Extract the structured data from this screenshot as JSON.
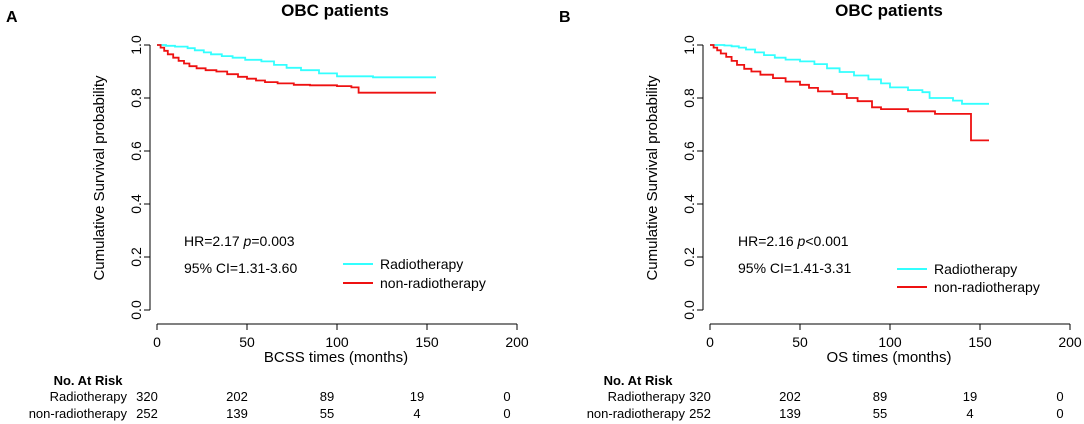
{
  "colors": {
    "radiotherapy": "#33FFFF",
    "non_radiotherapy": "#EE1111",
    "axis": "#000000"
  },
  "risk_header": "No. At Risk",
  "chart_data": [
    {
      "type": "line",
      "panel_label": "A",
      "title": "OBC patients",
      "xlabel": "BCSS times (months)",
      "ylabel": "Cumulative Survival probability",
      "xlim": [
        0,
        200
      ],
      "ylim": [
        0,
        1
      ],
      "xticks": [
        0,
        50,
        100,
        150,
        200
      ],
      "yticks": [
        0.0,
        0.2,
        0.4,
        0.6,
        0.8,
        1.0
      ],
      "grid": false,
      "stat_hr_prefix": "HR=2.17 ",
      "stat_p_symbol": "p",
      "stat_p_value": "=0.003",
      "stat_ci": "95% CI=1.31-3.60",
      "legend_position": "bottom-right",
      "series": [
        {
          "name": "Radiotherapy",
          "color_key": "radiotherapy",
          "points": [
            [
              0,
              1.0
            ],
            [
              3,
              1.0
            ],
            [
              5,
              0.997
            ],
            [
              10,
              0.994
            ],
            [
              17,
              0.988
            ],
            [
              21,
              0.98
            ],
            [
              26,
              0.972
            ],
            [
              30,
              0.965
            ],
            [
              36,
              0.958
            ],
            [
              42,
              0.952
            ],
            [
              49,
              0.944
            ],
            [
              58,
              0.938
            ],
            [
              65,
              0.925
            ],
            [
              72,
              0.914
            ],
            [
              80,
              0.905
            ],
            [
              90,
              0.893
            ],
            [
              100,
              0.882
            ],
            [
              120,
              0.878
            ],
            [
              130,
              0.878
            ],
            [
              155,
              0.878
            ]
          ]
        },
        {
          "name": "non-radiotherapy",
          "color_key": "non_radiotherapy",
          "points": [
            [
              0,
              1.0
            ],
            [
              2,
              0.99
            ],
            [
              4,
              0.978
            ],
            [
              6,
              0.965
            ],
            [
              9,
              0.952
            ],
            [
              12,
              0.94
            ],
            [
              15,
              0.93
            ],
            [
              18,
              0.92
            ],
            [
              22,
              0.912
            ],
            [
              27,
              0.905
            ],
            [
              33,
              0.9
            ],
            [
              39,
              0.89
            ],
            [
              45,
              0.88
            ],
            [
              50,
              0.873
            ],
            [
              55,
              0.866
            ],
            [
              60,
              0.86
            ],
            [
              67,
              0.855
            ],
            [
              76,
              0.85
            ],
            [
              85,
              0.848
            ],
            [
              100,
              0.845
            ],
            [
              104,
              0.845
            ],
            [
              108,
              0.84
            ],
            [
              112,
              0.82
            ],
            [
              125,
              0.82
            ],
            [
              155,
              0.82
            ]
          ]
        }
      ],
      "risk_rows": [
        {
          "label": "Radiotherapy",
          "values": [
            "320",
            "202",
            "89",
            "19",
            "0"
          ]
        },
        {
          "label": "non-radiotherapy",
          "values": [
            "252",
            "139",
            "55",
            "4",
            "0"
          ]
        }
      ]
    },
    {
      "type": "line",
      "panel_label": "B",
      "title": "OBC patients",
      "xlabel": "OS times (months)",
      "ylabel": "Cumulative Survival probability",
      "xlim": [
        0,
        200
      ],
      "ylim": [
        0,
        1
      ],
      "xticks": [
        0,
        50,
        100,
        150,
        200
      ],
      "yticks": [
        0.0,
        0.2,
        0.4,
        0.6,
        0.8,
        1.0
      ],
      "grid": false,
      "stat_hr_prefix": "HR=2.16 ",
      "stat_p_symbol": "p",
      "stat_p_value": "<0.001",
      "stat_ci": "95% CI=1.41-3.31",
      "legend_position": "bottom-right",
      "series": [
        {
          "name": "Radiotherapy",
          "color_key": "radiotherapy",
          "points": [
            [
              0,
              1.0
            ],
            [
              4,
              1.0
            ],
            [
              8,
              0.998
            ],
            [
              12,
              0.995
            ],
            [
              16,
              0.99
            ],
            [
              20,
              0.983
            ],
            [
              25,
              0.972
            ],
            [
              30,
              0.962
            ],
            [
              36,
              0.952
            ],
            [
              42,
              0.945
            ],
            [
              50,
              0.938
            ],
            [
              58,
              0.928
            ],
            [
              65,
              0.912
            ],
            [
              72,
              0.898
            ],
            [
              80,
              0.885
            ],
            [
              88,
              0.87
            ],
            [
              95,
              0.855
            ],
            [
              100,
              0.84
            ],
            [
              110,
              0.83
            ],
            [
              118,
              0.822
            ],
            [
              122,
              0.8
            ],
            [
              135,
              0.79
            ],
            [
              140,
              0.778
            ],
            [
              155,
              0.778
            ]
          ]
        },
        {
          "name": "non-radiotherapy",
          "color_key": "non_radiotherapy",
          "points": [
            [
              0,
              1.0
            ],
            [
              2,
              0.99
            ],
            [
              4,
              0.98
            ],
            [
              6,
              0.968
            ],
            [
              9,
              0.955
            ],
            [
              12,
              0.94
            ],
            [
              15,
              0.925
            ],
            [
              19,
              0.91
            ],
            [
              23,
              0.9
            ],
            [
              28,
              0.888
            ],
            [
              35,
              0.875
            ],
            [
              42,
              0.862
            ],
            [
              50,
              0.85
            ],
            [
              55,
              0.838
            ],
            [
              60,
              0.825
            ],
            [
              68,
              0.815
            ],
            [
              76,
              0.8
            ],
            [
              82,
              0.788
            ],
            [
              90,
              0.765
            ],
            [
              95,
              0.758
            ],
            [
              110,
              0.75
            ],
            [
              125,
              0.74
            ],
            [
              144,
              0.74
            ],
            [
              145,
              0.64
            ],
            [
              155,
              0.64
            ]
          ]
        }
      ],
      "risk_rows": [
        {
          "label": "Radiotherapy",
          "values": [
            "320",
            "202",
            "89",
            "19",
            "0"
          ]
        },
        {
          "label": "non-radiotherapy",
          "values": [
            "252",
            "139",
            "55",
            "4",
            "0"
          ]
        }
      ]
    }
  ]
}
